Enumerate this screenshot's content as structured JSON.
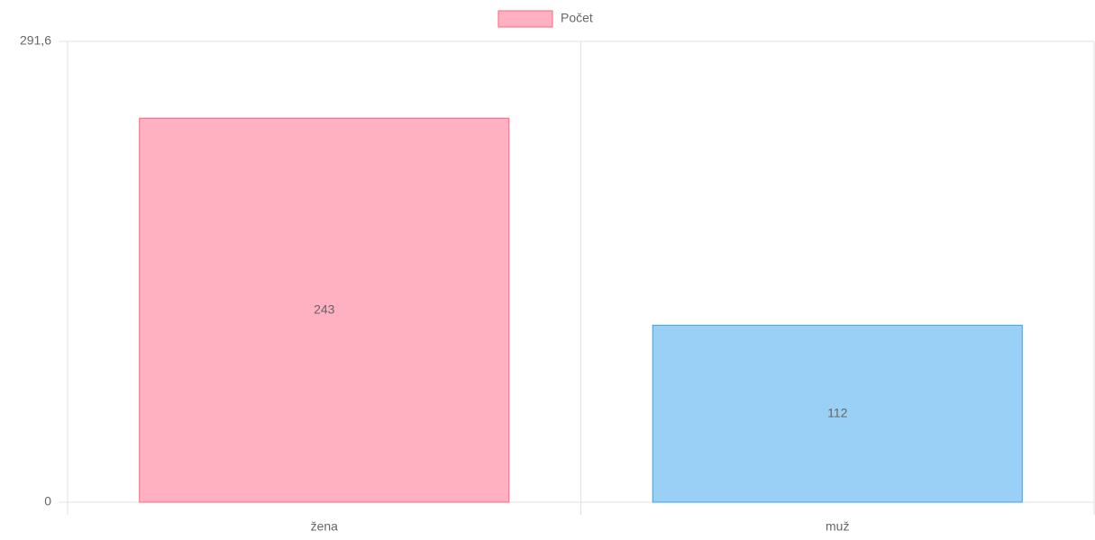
{
  "chart_data": {
    "type": "bar",
    "categories": [
      "žena",
      "muž"
    ],
    "series": [
      {
        "name": "Počet",
        "colors": [
          "#ff6384",
          "#36a2eb"
        ],
        "values": [
          243,
          112
        ]
      }
    ],
    "ylim": [
      0,
      291.6
    ],
    "yticks": [
      0,
      {
        "value": 291.6,
        "label": "291,6"
      }
    ],
    "grid": true
  }
}
